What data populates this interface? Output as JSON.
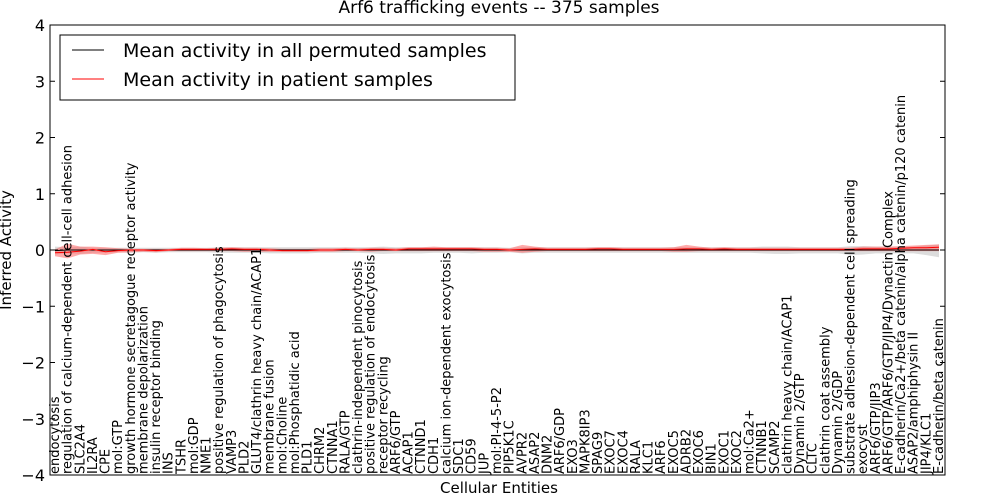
{
  "chart_data": {
    "type": "line",
    "title": "Arf6 trafficking events -- 375 samples",
    "xlabel": "Cellular Entities",
    "ylabel": "Inferred Activity",
    "ylim": [
      -4,
      4
    ],
    "yticks": [
      -4,
      -3,
      -2,
      -1,
      0,
      1,
      2,
      3,
      4
    ],
    "ytick_labels": [
      "−4",
      "−3",
      "−2",
      "−1",
      "0",
      "1",
      "2",
      "3",
      "4"
    ],
    "legend_position": "top-left",
    "categories": [
      "endocytosis",
      "regulation of calcium-dependent cell-cell adhesion",
      "SLC2A4",
      "IL2RA",
      "CPE",
      "mol:GTP",
      "growth hormone secretagogue receptor activity",
      "membrane depolarization",
      "insulin receptor binding",
      "INS",
      "TSHR",
      "mol:GDP",
      "NME1",
      "positive regulation of phagocytosis",
      "VAMP3",
      "PLD2",
      "GLUT4/clathrin heavy chain/ACAP1",
      "membrane fusion",
      "mol:Choline",
      "mol:Phosphatidic acid",
      "PLD1",
      "CHRM2",
      "CTNNA1",
      "RALA/GTP",
      "clathrin-independent pinocytosis",
      "positive regulation of endocytosis",
      "receptor recycling",
      "ARF6/GTP",
      "ACAP1",
      "CTNND1",
      "CDH1",
      "calcium ion-dependent exocytosis",
      "SDC1",
      "CD59",
      "JUP",
      "mol:PI-4-5-P2",
      "PIP5K1C",
      "AVPR2",
      "ASAP2",
      "DNM2",
      "ARF6/GDP",
      "EXO3",
      "MAPK8IP3",
      "SPAG9",
      "EXOC7",
      "EXOC4",
      "RALA",
      "KLC1",
      "ARF6",
      "EXOC5",
      "ADRB2",
      "EXOC6",
      "BIN1",
      "EXOC1",
      "EXOC2",
      "mol:Ca2+",
      "CTNNB1",
      "SCAMP2",
      "clathrin heavy chain/ACAP1",
      "Dynamin 2/GTP",
      "CLTC",
      "clathrin coat assembly",
      "Dynamin 2/GDP",
      "substrate adhesion-dependent cell spreading",
      "exocyst",
      "ARF6/GTP/JIP3",
      "ARF6/GTP/ARF6/GTP/JIP4/Dynactin Complex",
      "E-cadherin/Ca2+/beta catenin/alpha catenin/p120 catenin",
      "ASAP2/amphiphysin II",
      "JIP4/KLC1",
      "E-cadherin/beta catenin"
    ],
    "series": [
      {
        "name": "Mean activity in all permuted samples",
        "color": "#000000",
        "values": [
          -0.01,
          0,
          0,
          0,
          0,
          0,
          0,
          0,
          0,
          0,
          0,
          0,
          0,
          0,
          0,
          0,
          0,
          0,
          0,
          0,
          0,
          0,
          0,
          0,
          0,
          0,
          0,
          0,
          0,
          0,
          0,
          0,
          0,
          0,
          0,
          0,
          0,
          0,
          0,
          0,
          0,
          0,
          0,
          0,
          0,
          0,
          0,
          0,
          0,
          0,
          0,
          0,
          0,
          0,
          0,
          0,
          0,
          0,
          0,
          0,
          0,
          0,
          0,
          0,
          0,
          0,
          0,
          0,
          0,
          0,
          0
        ],
        "band_lower": [
          -0.08,
          -0.06,
          -0.07,
          -0.05,
          -0.05,
          -0.04,
          -0.05,
          -0.04,
          -0.05,
          -0.04,
          -0.04,
          -0.04,
          -0.04,
          -0.05,
          -0.05,
          -0.05,
          -0.05,
          -0.06,
          -0.06,
          -0.06,
          -0.06,
          -0.05,
          -0.05,
          -0.05,
          -0.05,
          -0.06,
          -0.07,
          -0.06,
          -0.06,
          -0.06,
          -0.05,
          -0.05,
          -0.05,
          -0.06,
          -0.05,
          -0.05,
          -0.04,
          -0.06,
          -0.05,
          -0.05,
          -0.05,
          -0.05,
          -0.05,
          -0.05,
          -0.05,
          -0.05,
          -0.05,
          -0.05,
          -0.05,
          -0.05,
          -0.05,
          -0.05,
          -0.05,
          -0.05,
          -0.05,
          -0.05,
          -0.06,
          -0.07,
          -0.07,
          -0.06,
          -0.06,
          -0.06,
          -0.06,
          -0.09,
          -0.08,
          -0.06,
          -0.06,
          -0.06,
          -0.06,
          -0.09,
          -0.13
        ],
        "band_upper": [
          0.06,
          0.05,
          0.06,
          0.04,
          0.04,
          0.04,
          0.04,
          0.04,
          0.04,
          0.04,
          0.04,
          0.04,
          0.04,
          0.05,
          0.05,
          0.05,
          0.05,
          0.05,
          0.05,
          0.05,
          0.05,
          0.05,
          0.05,
          0.05,
          0.05,
          0.05,
          0.06,
          0.05,
          0.05,
          0.05,
          0.05,
          0.05,
          0.05,
          0.05,
          0.05,
          0.05,
          0.04,
          0.05,
          0.05,
          0.05,
          0.05,
          0.05,
          0.05,
          0.05,
          0.05,
          0.05,
          0.05,
          0.05,
          0.05,
          0.05,
          0.05,
          0.05,
          0.05,
          0.05,
          0.05,
          0.05,
          0.06,
          0.06,
          0.06,
          0.05,
          0.05,
          0.05,
          0.05,
          0.07,
          0.07,
          0.06,
          0.06,
          0.06,
          0.06,
          0.08,
          0.1
        ]
      },
      {
        "name": "Mean activity in patient samples",
        "color": "#ff0000",
        "values": [
          -0.05,
          -0.04,
          -0.02,
          0.01,
          -0.03,
          -0.01,
          0,
          0,
          -0.01,
          0,
          0.01,
          0.01,
          0.01,
          0.01,
          0.02,
          0.01,
          0.01,
          0,
          -0.01,
          -0.01,
          -0.01,
          0,
          0,
          0.01,
          0,
          0.01,
          0.01,
          0,
          0.02,
          0.02,
          0.02,
          0.02,
          0.02,
          0.02,
          0.01,
          0.01,
          0,
          0.01,
          0.02,
          0.01,
          0.01,
          0.01,
          0.01,
          0.02,
          0.02,
          0.01,
          0.01,
          0.01,
          0.01,
          0.01,
          0.02,
          0.02,
          0.01,
          0.02,
          0.01,
          0.01,
          0.01,
          0.01,
          0.01,
          0.01,
          0.01,
          0.01,
          0.01,
          0.01,
          0.02,
          0.02,
          0.02,
          0.03,
          0.04,
          0.04,
          0.05
        ],
        "band_lower": [
          -0.11,
          -0.15,
          -0.08,
          -0.07,
          -0.09,
          -0.05,
          -0.04,
          -0.03,
          -0.04,
          -0.02,
          -0.02,
          -0.02,
          -0.02,
          -0.02,
          -0.02,
          -0.03,
          -0.03,
          -0.03,
          -0.03,
          -0.03,
          -0.03,
          -0.03,
          -0.03,
          -0.02,
          -0.02,
          -0.03,
          -0.02,
          -0.02,
          -0.02,
          -0.02,
          -0.02,
          -0.02,
          -0.02,
          -0.02,
          -0.03,
          -0.03,
          -0.03,
          -0.05,
          -0.03,
          -0.02,
          -0.02,
          -0.02,
          -0.02,
          -0.02,
          -0.02,
          -0.02,
          -0.02,
          -0.02,
          -0.02,
          -0.03,
          -0.03,
          -0.02,
          -0.02,
          -0.02,
          -0.02,
          -0.02,
          -0.02,
          -0.02,
          -0.02,
          -0.02,
          -0.02,
          -0.02,
          -0.02,
          -0.02,
          -0.02,
          -0.02,
          -0.02,
          -0.02,
          -0.02,
          -0.02,
          -0.02
        ],
        "band_upper": [
          0.01,
          0.11,
          0.06,
          0.06,
          0.05,
          0.03,
          0.02,
          0.02,
          0.02,
          0.02,
          0.04,
          0.04,
          0.03,
          0.04,
          0.05,
          0.04,
          0.04,
          0.03,
          0.02,
          0.02,
          0.02,
          0.03,
          0.03,
          0.04,
          0.03,
          0.04,
          0.04,
          0.03,
          0.05,
          0.05,
          0.06,
          0.05,
          0.05,
          0.05,
          0.04,
          0.04,
          0.03,
          0.09,
          0.06,
          0.04,
          0.04,
          0.04,
          0.04,
          0.05,
          0.05,
          0.04,
          0.04,
          0.04,
          0.04,
          0.05,
          0.09,
          0.06,
          0.04,
          0.05,
          0.04,
          0.04,
          0.04,
          0.04,
          0.04,
          0.04,
          0.04,
          0.04,
          0.04,
          0.04,
          0.06,
          0.06,
          0.06,
          0.07,
          0.08,
          0.09,
          0.1
        ]
      }
    ]
  }
}
